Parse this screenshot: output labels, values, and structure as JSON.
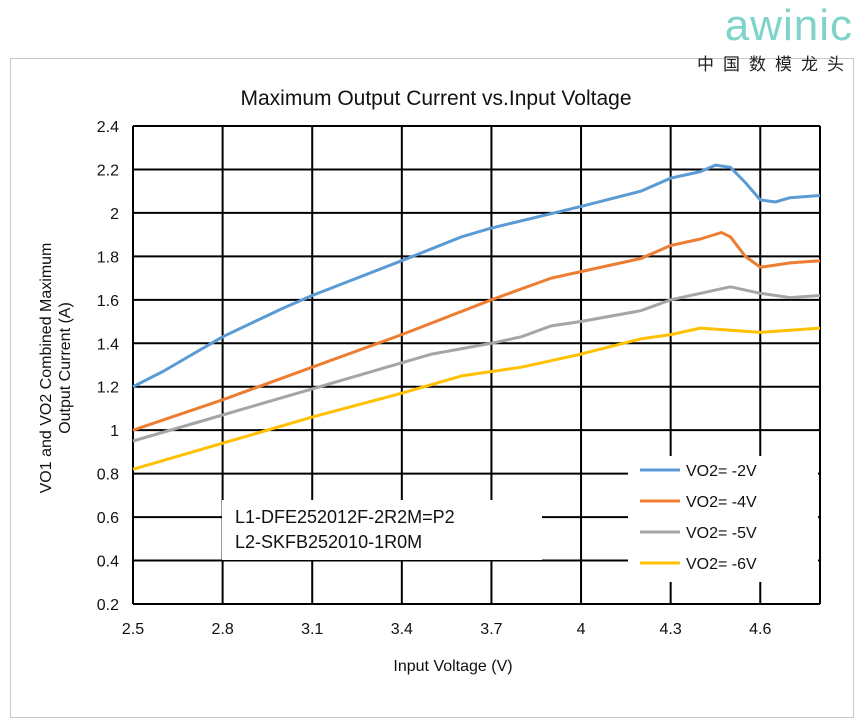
{
  "logo": {
    "brand": "awinic",
    "tagline": "中国数模龙头"
  },
  "chart_data": {
    "type": "line",
    "title": "Maximum Output Current vs.Input Voltage",
    "xlabel": "Input Voltage (V)",
    "ylabel": [
      "VO1 and VO2 Combined Maximum",
      "Output Current (A)"
    ],
    "xlim": [
      2.5,
      4.8
    ],
    "ylim": [
      0.2,
      2.4
    ],
    "xticks": [
      2.5,
      2.8,
      3.1,
      3.4,
      3.7,
      4,
      4.3,
      4.6
    ],
    "xtick_labels": [
      "2.5",
      "2.8",
      "3.1",
      "3.4",
      "3.7",
      "4",
      "4.3",
      "4.6"
    ],
    "yticks": [
      0.2,
      0.4,
      0.6,
      0.8,
      1,
      1.2,
      1.4,
      1.6,
      1.8,
      2,
      2.2,
      2.4
    ],
    "ytick_labels": [
      "0.2",
      "0.4",
      "0.6",
      "0.8",
      "1",
      "1.2",
      "1.4",
      "1.6",
      "1.8",
      "2",
      "2.2",
      "2.4"
    ],
    "grid": true,
    "legend_position": "bottom-right",
    "annotations": [
      "L1-DFE252012F-2R2M=P2",
      "L2-SKFB252010-1R0M"
    ],
    "series": [
      {
        "name": "VO2= -2V",
        "color": "#5b9bd5",
        "x": [
          2.5,
          2.6,
          2.8,
          3.0,
          3.1,
          3.4,
          3.6,
          3.7,
          4.0,
          4.2,
          4.3,
          4.4,
          4.45,
          4.5,
          4.55,
          4.6,
          4.65,
          4.7,
          4.8
        ],
        "y": [
          1.2,
          1.27,
          1.43,
          1.56,
          1.62,
          1.78,
          1.89,
          1.93,
          2.03,
          2.1,
          2.16,
          2.19,
          2.22,
          2.21,
          2.14,
          2.06,
          2.05,
          2.07,
          2.08
        ]
      },
      {
        "name": "VO2= -4V",
        "color": "#ed7d31",
        "x": [
          2.5,
          2.8,
          3.1,
          3.4,
          3.7,
          3.9,
          4.0,
          4.2,
          4.3,
          4.4,
          4.47,
          4.5,
          4.55,
          4.6,
          4.65,
          4.7,
          4.8
        ],
        "y": [
          1.0,
          1.14,
          1.29,
          1.44,
          1.6,
          1.7,
          1.73,
          1.79,
          1.85,
          1.88,
          1.91,
          1.89,
          1.8,
          1.75,
          1.76,
          1.77,
          1.78
        ]
      },
      {
        "name": "VO2= -5V",
        "color": "#a5a5a5",
        "x": [
          2.5,
          2.8,
          3.1,
          3.4,
          3.5,
          3.7,
          3.8,
          3.9,
          4.0,
          4.2,
          4.3,
          4.4,
          4.5,
          4.6,
          4.7,
          4.8
        ],
        "y": [
          0.95,
          1.07,
          1.19,
          1.31,
          1.35,
          1.4,
          1.43,
          1.48,
          1.5,
          1.55,
          1.6,
          1.63,
          1.66,
          1.63,
          1.61,
          1.62
        ]
      },
      {
        "name": "VO2= -6V",
        "color": "#ffc000",
        "x": [
          2.5,
          2.8,
          3.1,
          3.4,
          3.5,
          3.6,
          3.8,
          3.9,
          4.0,
          4.2,
          4.3,
          4.4,
          4.5,
          4.6,
          4.7,
          4.8
        ],
        "y": [
          0.82,
          0.94,
          1.06,
          1.17,
          1.21,
          1.25,
          1.29,
          1.32,
          1.35,
          1.42,
          1.44,
          1.47,
          1.46,
          1.45,
          1.46,
          1.47
        ]
      }
    ]
  }
}
